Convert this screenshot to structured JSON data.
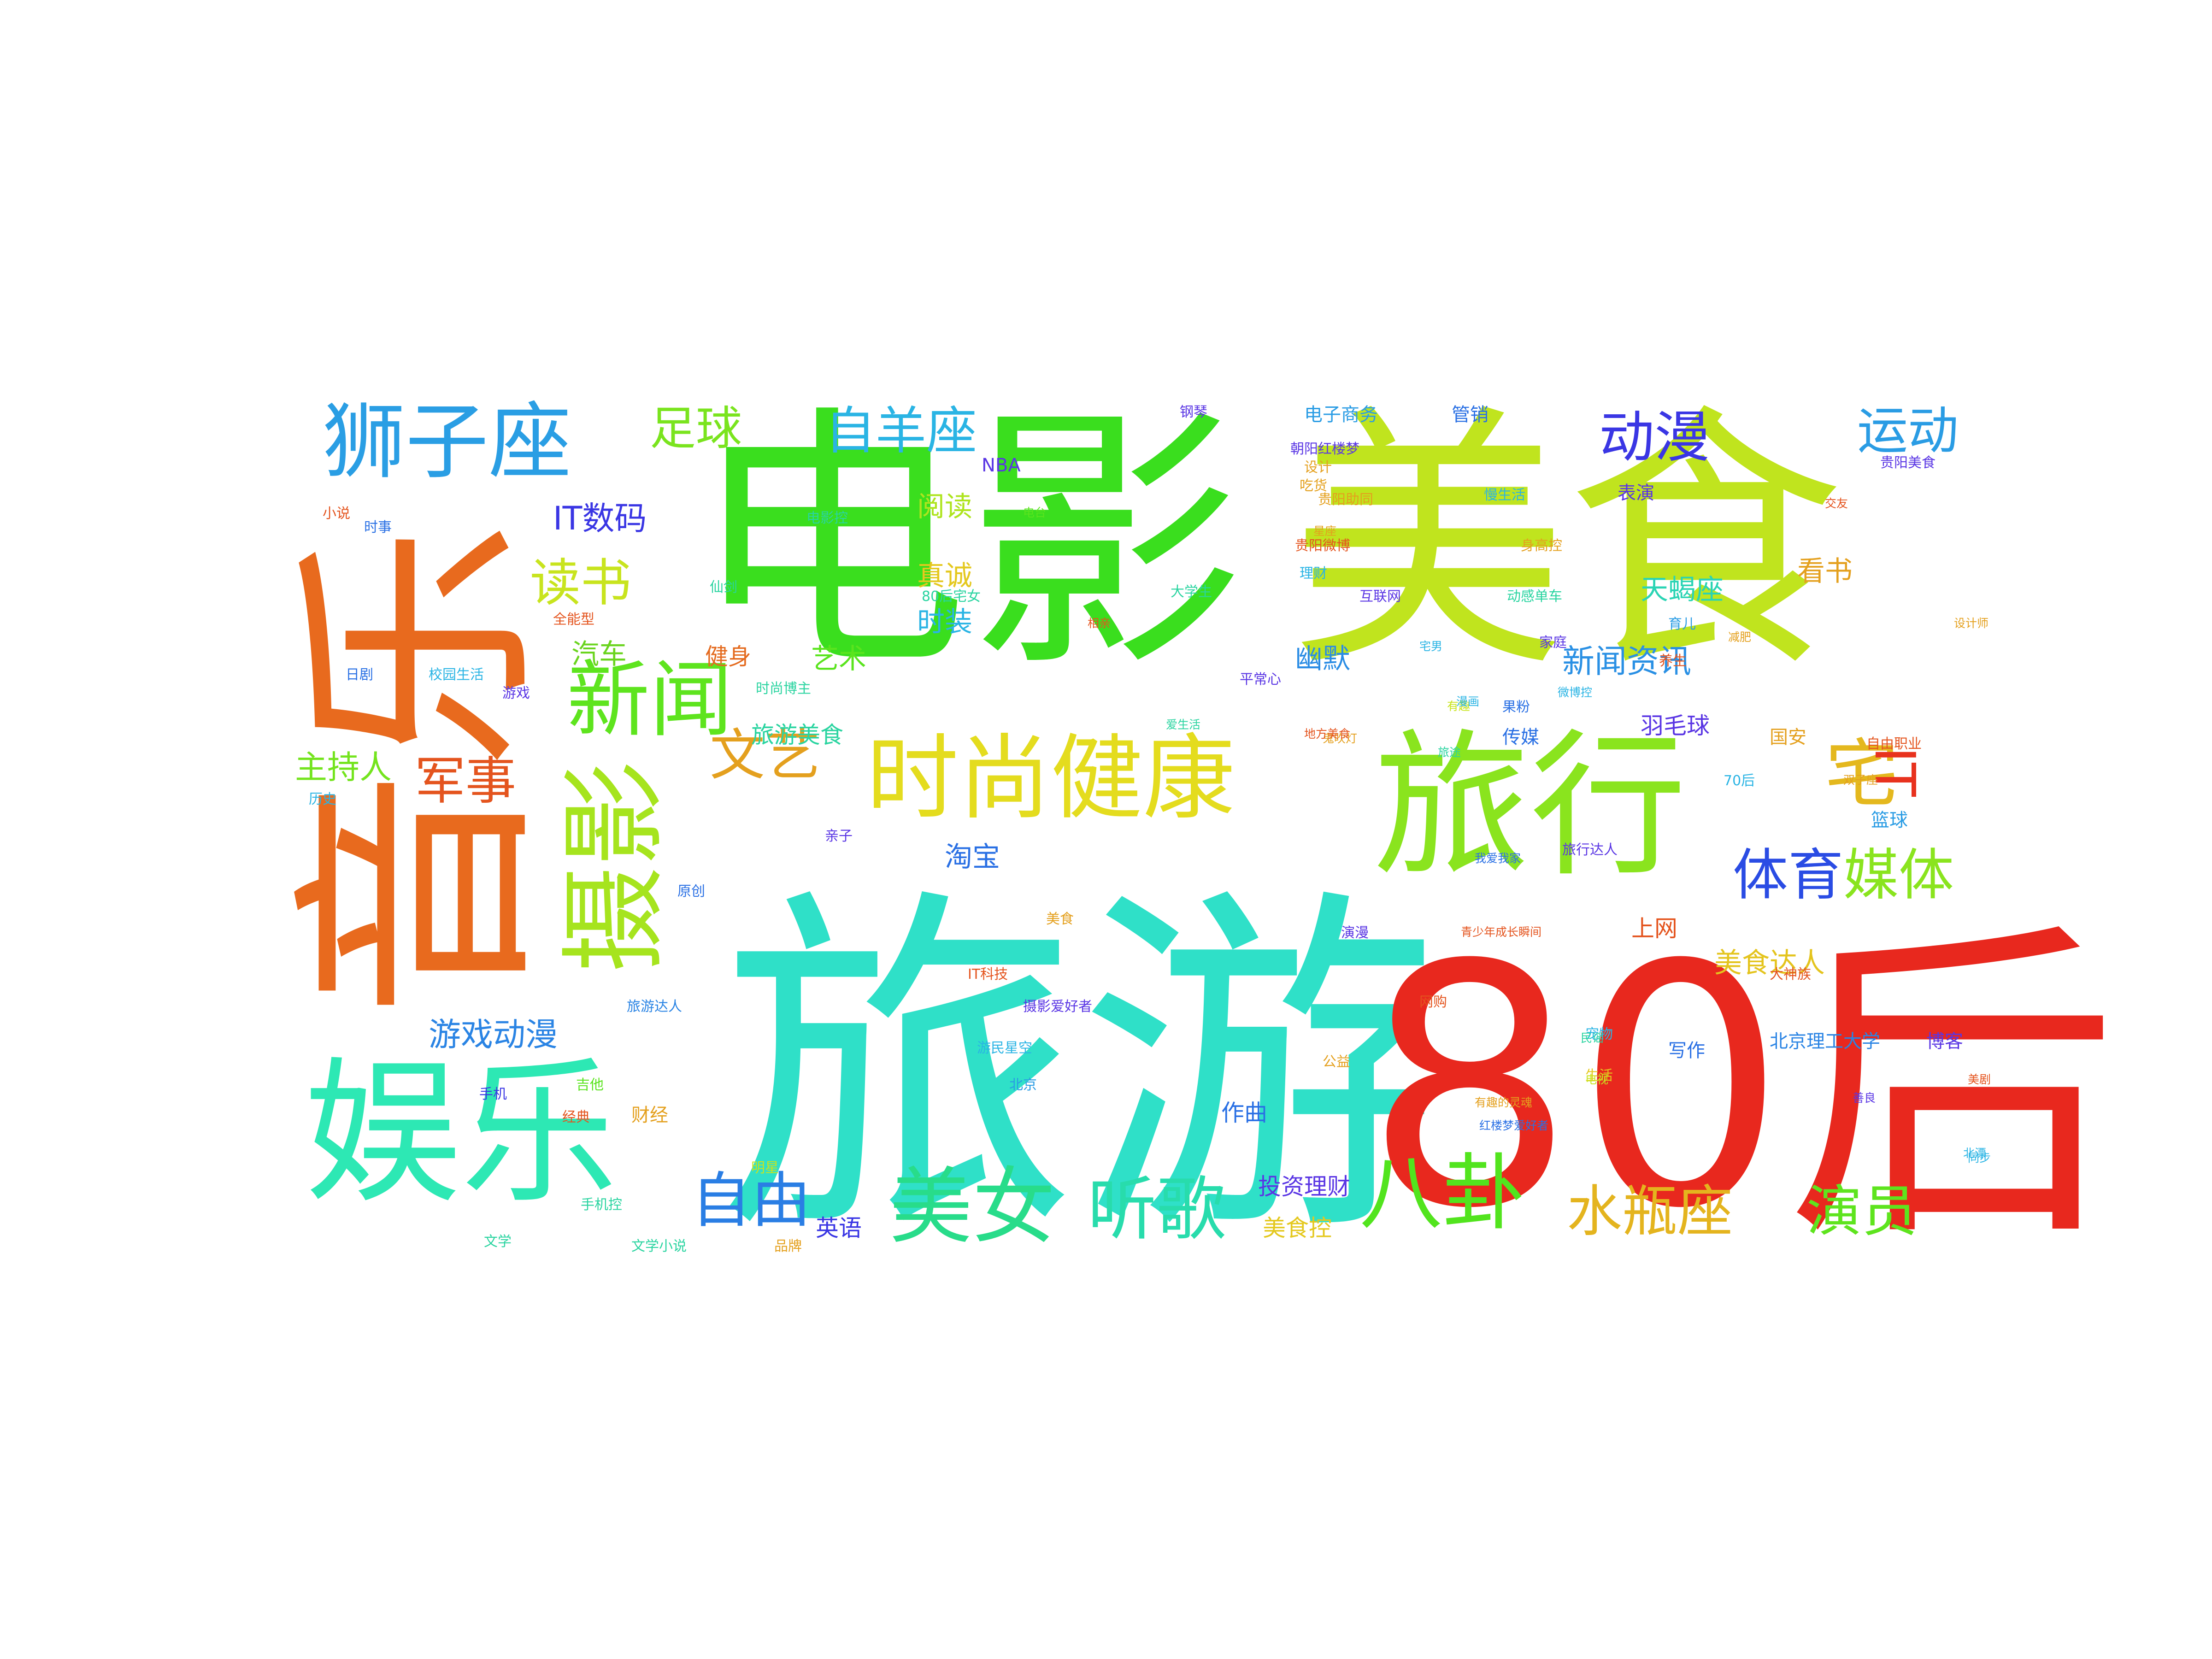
{
  "words": [
    {
      "text": "旅游",
      "color": "#2fe0c8"
    },
    {
      "text": "80后",
      "color": "#e8281e"
    },
    {
      "text": "电影",
      "color": "#3ade1e"
    },
    {
      "text": "美食",
      "color": "#c0e41e"
    },
    {
      "text": "音乐",
      "color": "#e86a1e"
    },
    {
      "text": "摄影",
      "color": "#a6e41e"
    },
    {
      "text": "旅行",
      "color": "#8ae41e"
    },
    {
      "text": "娱乐",
      "color": "#2de8b4"
    },
    {
      "text": "时尚健康",
      "color": "#e4dc1e"
    },
    {
      "text": "狮子座",
      "color": "#2a9ee4"
    },
    {
      "text": "新闻",
      "color": "#5ee41e"
    },
    {
      "text": "八卦",
      "color": "#52e41e"
    },
    {
      "text": "美女",
      "color": "#28dc8a"
    },
    {
      "text": "听歌",
      "color": "#28dcac"
    },
    {
      "text": "宅",
      "color": "#e4b81e"
    },
    {
      "text": "IT",
      "color": "#e8321e"
    },
    {
      "text": "自羊座",
      "color": "#2ab4e4"
    },
    {
      "text": "动漫",
      "color": "#3a36e4"
    },
    {
      "text": "运动",
      "color": "#2a9ce4"
    },
    {
      "text": "足球",
      "color": "#7ae41e"
    },
    {
      "text": "读书",
      "color": "#c8e41e"
    },
    {
      "text": "文艺",
      "color": "#e4a01e"
    },
    {
      "text": "军事",
      "color": "#e4541e"
    },
    {
      "text": "自由",
      "color": "#2a7ee4"
    },
    {
      "text": "体育",
      "color": "#2a4ce4"
    },
    {
      "text": "媒体",
      "color": "#8ae41e"
    },
    {
      "text": "水瓶座",
      "color": "#e4b41e"
    },
    {
      "text": "演员",
      "color": "#5ee41e"
    },
    {
      "text": "游戏动漫",
      "color": "#2a84e4"
    },
    {
      "text": "IT数码",
      "color": "#3a36e4"
    },
    {
      "text": "主持人",
      "color": "#74e41e"
    },
    {
      "text": "淘宝",
      "color": "#2a70e4"
    },
    {
      "text": "新闻资讯",
      "color": "#2a90e4"
    },
    {
      "text": "美食达人",
      "color": "#e4c41e"
    },
    {
      "text": "汽车",
      "color": "#6ad41e"
    },
    {
      "text": "健身",
      "color": "#e46a1e"
    },
    {
      "text": "阅读",
      "color": "#aee41e"
    },
    {
      "text": "真诚",
      "color": "#e4c81e"
    },
    {
      "text": "时装",
      "color": "#2ab4e4"
    },
    {
      "text": "艺术",
      "color": "#5ae41e"
    },
    {
      "text": "幽默",
      "color": "#2a8ce4"
    },
    {
      "text": "天蝎座",
      "color": "#2ad4b4"
    },
    {
      "text": "看书",
      "color": "#e4a01e"
    },
    {
      "text": "旅游美食",
      "color": "#2ad4a0"
    },
    {
      "text": "羽毛球",
      "color": "#5a36e4"
    },
    {
      "text": "上网",
      "color": "#e4541e"
    },
    {
      "text": "英语",
      "color": "#3a36e4"
    },
    {
      "text": "美食控",
      "color": "#e4c81e"
    },
    {
      "text": "投资理财",
      "color": "#5a36e4"
    },
    {
      "text": "作曲",
      "color": "#2a70e4"
    },
    {
      "text": "财经",
      "color": "#e4a01e"
    },
    {
      "text": "北京理工大学",
      "color": "#2a84e4"
    },
    {
      "text": "博客",
      "color": "#5a36e4"
    },
    {
      "text": "写作",
      "color": "#2a70e4"
    },
    {
      "text": "篮球",
      "color": "#2a9ce4"
    },
    {
      "text": "国安",
      "color": "#e4a01e"
    },
    {
      "text": "传媒",
      "color": "#2a70e4"
    },
    {
      "text": "NBA",
      "color": "#5a36e4"
    },
    {
      "text": "钢琴",
      "color": "#5a36e4"
    },
    {
      "text": "电子商务",
      "color": "#2a9ce4"
    },
    {
      "text": "管销",
      "color": "#2a70e4"
    },
    {
      "text": "表演",
      "color": "#5a36e4"
    },
    {
      "text": "贵阳美食",
      "color": "#5a36e4"
    },
    {
      "text": "育儿",
      "color": "#2a9ce4"
    },
    {
      "text": "70后",
      "color": "#2ab4e4"
    },
    {
      "text": "亲子",
      "color": "#5a36e4"
    },
    {
      "text": "原创",
      "color": "#2a70e4"
    },
    {
      "text": "历史",
      "color": "#2ab4e4"
    },
    {
      "text": "文学",
      "color": "#2ad4a0"
    },
    {
      "text": "电影控",
      "color": "#2ad4a0"
    },
    {
      "text": "美食",
      "color": "#e4a01e"
    },
    {
      "text": "IT科技",
      "color": "#e4541e"
    },
    {
      "text": "摄影爱好者",
      "color": "#5a36e4"
    },
    {
      "text": "游民星空",
      "color": "#2ab4e4"
    },
    {
      "text": "北京",
      "color": "#2a9ce4"
    },
    {
      "text": "公益",
      "color": "#e4a01e"
    },
    {
      "text": "宠物",
      "color": "#2ab4e4"
    },
    {
      "text": "小说",
      "color": "#e4541e"
    },
    {
      "text": "明星",
      "color": "#c8e41e"
    },
    {
      "text": "生活",
      "color": "#e4c81e"
    },
    {
      "text": "手机",
      "color": "#3a36e4"
    },
    {
      "text": "吉他",
      "color": "#5ae41e"
    },
    {
      "text": "经典",
      "color": "#e4541e"
    },
    {
      "text": "时尚博主",
      "color": "#2ad4a0"
    },
    {
      "text": "旅行达人",
      "color": "#5a36e4"
    },
    {
      "text": "全能型",
      "color": "#e4541e"
    },
    {
      "text": "网购",
      "color": "#e4541e"
    },
    {
      "text": "果粉",
      "color": "#2a70e4"
    },
    {
      "text": "养生",
      "color": "#e4541e"
    },
    {
      "text": "手机控",
      "color": "#2ad4a0"
    },
    {
      "text": "旅游达人",
      "color": "#2a84e4"
    },
    {
      "text": "文学小说",
      "color": "#2ad4a0"
    },
    {
      "text": "吃货",
      "color": "#e4a01e"
    },
    {
      "text": "慢生活",
      "color": "#2ab4e4"
    },
    {
      "text": "自由职业",
      "color": "#e4541e"
    },
    {
      "text": "品牌",
      "color": "#e4a01e"
    },
    {
      "text": "时事",
      "color": "#2a70e4"
    },
    {
      "text": "校园生活",
      "color": "#2ab4e4"
    },
    {
      "text": "仙剑",
      "color": "#2ad4a0"
    },
    {
      "text": "游戏",
      "color": "#5a36e4"
    },
    {
      "text": "日剧",
      "color": "#2a70e4"
    },
    {
      "text": "理财",
      "color": "#2ab4e4"
    },
    {
      "text": "互联网",
      "color": "#5a36e4"
    },
    {
      "text": "动感单车",
      "color": "#2ad4a0"
    },
    {
      "text": "身高控",
      "color": "#e4a01e"
    },
    {
      "text": "贵阳微博",
      "color": "#e4541e"
    },
    {
      "text": "贵阳助同",
      "color": "#e4a01e"
    },
    {
      "text": "家庭",
      "color": "#5a36e4"
    },
    {
      "text": "平常心",
      "color": "#5a36e4"
    },
    {
      "text": "80后宅女",
      "color": "#2ad4a0"
    },
    {
      "text": "设计",
      "color": "#e4a01e"
    },
    {
      "text": "演漫",
      "color": "#5a36e4"
    },
    {
      "text": "青少年成长瞬间",
      "color": "#e4541e"
    },
    {
      "text": "鬼吹灯",
      "color": "#e4a01e"
    },
    {
      "text": "相亲",
      "color": "#e4541e"
    },
    {
      "text": "朝阳红楼梦",
      "color": "#5a36e4"
    },
    {
      "text": "大学生",
      "color": "#2ad4a0"
    },
    {
      "text": "减肥",
      "color": "#e4a01e"
    },
    {
      "text": "红楼梦爱好者",
      "color": "#2a70e4"
    },
    {
      "text": "电台",
      "color": "#5ae41e"
    },
    {
      "text": "地方美食",
      "color": "#e4541e"
    },
    {
      "text": "有趣的灵魂",
      "color": "#e4a01e"
    },
    {
      "text": "爱生活",
      "color": "#2ad4a0"
    },
    {
      "text": "宅男",
      "color": "#2ab4e4"
    },
    {
      "text": "民谣",
      "color": "#2ad4a0"
    },
    {
      "text": "有趣",
      "color": "#c8e41e"
    },
    {
      "text": "旅途",
      "color": "#2ad4a0"
    },
    {
      "text": "星座",
      "color": "#e4a01e"
    },
    {
      "text": "交友",
      "color": "#e4541e"
    },
    {
      "text": "漫画",
      "color": "#2ab4e4"
    },
    {
      "text": "微博控",
      "color": "#2ab4e4"
    },
    {
      "text": "北漂",
      "color": "#2ab4e4"
    },
    {
      "text": "美剧",
      "color": "#e4541e"
    },
    {
      "text": "双子座",
      "color": "#e4a01e"
    },
    {
      "text": "善良",
      "color": "#5a36e4"
    },
    {
      "text": "同步",
      "color": "#2ab4e4"
    },
    {
      "text": "设计师",
      "color": "#e4a01e"
    },
    {
      "text": "电视",
      "color": "#c8e41e"
    },
    {
      "text": "我爱我家",
      "color": "#2a70e4"
    },
    {
      "text": "大神族",
      "color": "#e4541e"
    }
  ]
}
